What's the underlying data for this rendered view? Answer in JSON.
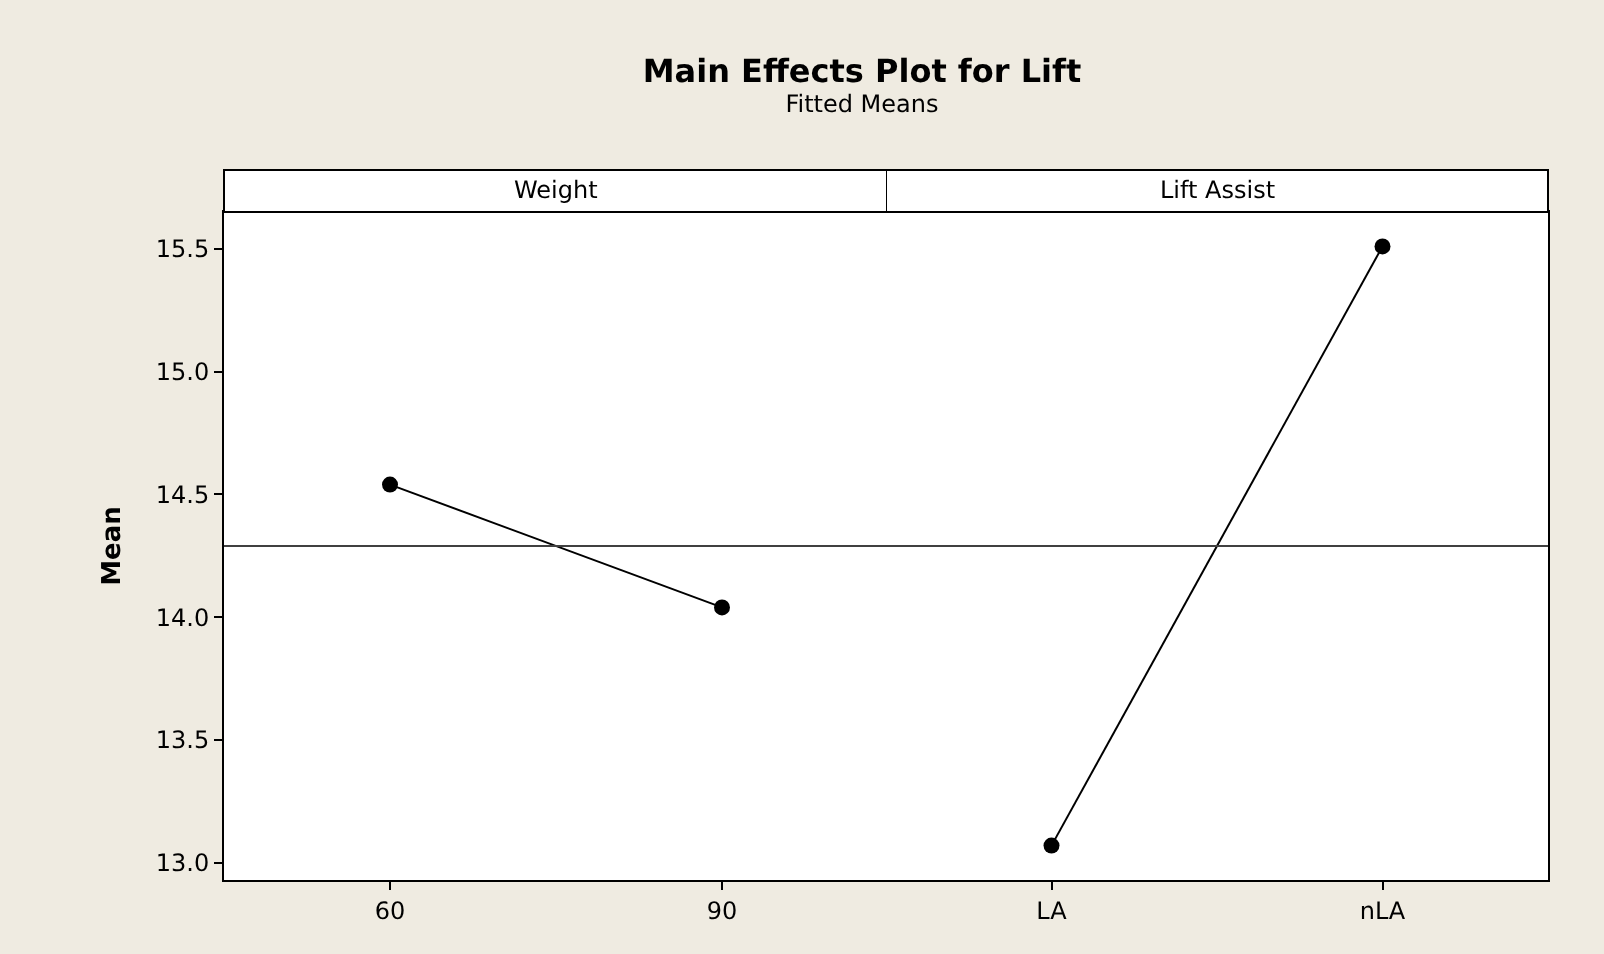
{
  "chart_data": [
    {
      "type": "line",
      "title": "Main Effects Plot for Lift",
      "subtitle": "Fitted Means",
      "xlabel": "Weight",
      "ylabel": "Mean",
      "categories": [
        "60",
        "90"
      ],
      "values": [
        14.54,
        14.04
      ],
      "color": "#000000",
      "marker": "circle",
      "line_style": "solid",
      "ylim": [
        12.93,
        15.65
      ],
      "yticks": [
        {
          "value": 13,
          "label": "13.0"
        },
        13.5,
        {
          "value": 14,
          "label": "14.0"
        },
        14.5,
        {
          "value": 15,
          "label": "15.0"
        },
        15.5
      ],
      "ref_lines": [
        {
          "axis": "y",
          "value": 14.29,
          "color": "#404040"
        }
      ],
      "grid": false,
      "legend": false
    },
    {
      "type": "line",
      "xlabel": "Lift Assist",
      "categories": [
        "LA",
        "nLA"
      ],
      "values": [
        13.07,
        15.51
      ],
      "color": "#000000",
      "marker": "circle",
      "line_style": "solid",
      "ylim": [
        12.93,
        15.65
      ],
      "ref_lines": [
        {
          "axis": "y",
          "value": 14.29,
          "color": "#404040"
        }
      ],
      "grid": false,
      "legend": false,
      "tick_labels": "x"
    }
  ]
}
